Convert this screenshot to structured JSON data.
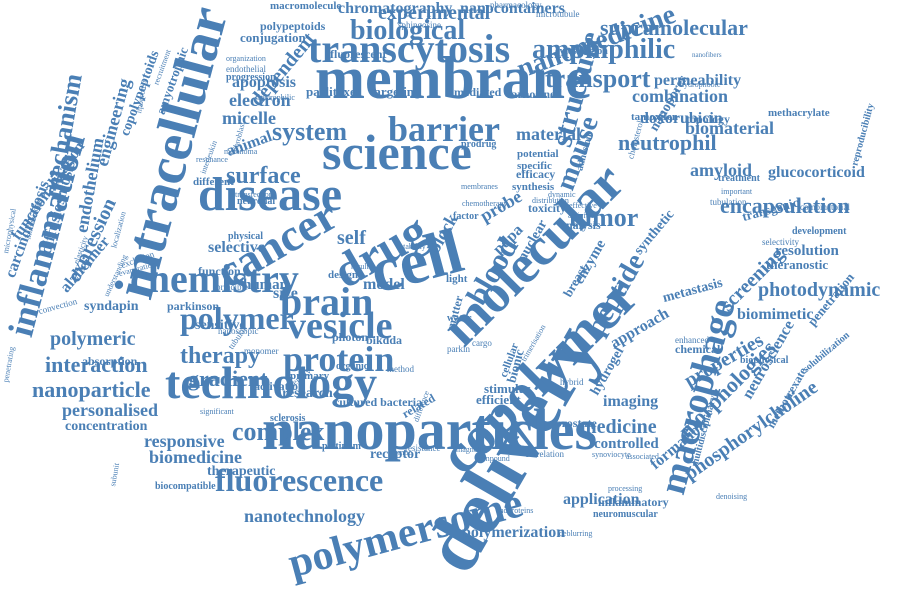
{
  "theme": {
    "word_color": "#4A7FB5",
    "background": "#ffffff"
  },
  "cloud": {
    "words": [
      "delivery",
      "nanoparticles",
      "membrane",
      "copolymer",
      "molecular",
      "science",
      "cell",
      "drug",
      "intracellular",
      "cancer",
      "disease",
      "inflammation",
      "polymersome",
      "macrophage",
      "technology",
      "chemistry",
      "brain",
      "vesicle",
      "transcytosis",
      "barrier",
      "fluorescence",
      "protein",
      "polymer",
      "amphiphilic",
      "nanomedicine",
      "biological",
      "structure",
      "blood",
      "encapsulation",
      "system",
      "surface",
      "peptide",
      "complex",
      "transport",
      "supramolecular",
      "experimental",
      "chromatography",
      "nanocontainers",
      "pharmacology",
      "macromolecule",
      "sphingosine",
      "microtubule",
      "polypeptoids",
      "conjugation",
      "dependent",
      "fluorescent",
      "cytoskeleton",
      "organization",
      "endothelial",
      "progression",
      "hydrophilic",
      "mediated",
      "targeting",
      "paclitaxel",
      "apoptosis",
      "electron",
      "micelle",
      "animal",
      "combination",
      "permeability",
      "tamoxifen",
      "doxorubicin",
      "biomaterial",
      "neutrophil",
      "methacrylate",
      "glucocorticoid",
      "reproducibility",
      "amyloid",
      "topology",
      "nanopores",
      "mouse",
      "material",
      "prodrug",
      "carnosine",
      "potential",
      "specific",
      "efficacy",
      "synthesis",
      "different",
      "neuronal",
      "physical",
      "selective",
      "human",
      "size",
      "model",
      "tumor",
      "probe",
      "self",
      "block",
      "pdpa",
      "breast",
      "nuclear",
      "enzyme",
      "analysis",
      "toxicity",
      "factor",
      "synthetic",
      "transgenic",
      "selectivity",
      "development",
      "combinatorial",
      "resolution",
      "theranostic",
      "screening",
      "metastasis",
      "photodynamic",
      "penetration",
      "biomimetic",
      "mechanism",
      "endothelium",
      "diffusiosmosis",
      "carcinomatosis",
      "functionalization",
      "engineering",
      "copolypeptoids",
      "amyotrophic",
      "expression",
      "alzheimer",
      "exclusion",
      "syndapin",
      "parkinson",
      "sensitive",
      "polymeric",
      "absorption",
      "interaction",
      "therapy",
      "nanoparticle",
      "gradient",
      "personalised",
      "concentration",
      "responsive",
      "biomedicine",
      "therapeutic",
      "nanotechnology",
      "platinum",
      "receptor",
      "medicine",
      "controlled",
      "imaging",
      "prostate",
      "efficient",
      "stimulus",
      "bionic",
      "cellular",
      "approach",
      "morphologies",
      "properties",
      "neuroscience",
      "phosphorylcholine",
      "methotrexate",
      "application",
      "polymerization",
      "inflammatory",
      "neuromuscular",
      "formation",
      "hydrogel",
      "research",
      "photon",
      "bikdda",
      "cultured bacteria",
      "sclerosis",
      "activation",
      "related",
      "matter",
      "hybrid",
      "cargo",
      "parkin",
      "solubilization",
      "chemical",
      "biophysical",
      "enhanced",
      "multidisciplinary",
      "biocompatible",
      "andproteins",
      "deblurring",
      "primary",
      "organic",
      "method",
      "water",
      "light",
      "design",
      "result",
      "monomer",
      "density",
      "tubular",
      "significant",
      "nanoscopic",
      "principle",
      "function",
      "resonance",
      "adhesion",
      "cholesterol",
      "stability",
      "activity",
      "effective",
      "distribution",
      "dynamic",
      "membranes",
      "chemotherapy",
      "treatment",
      "important",
      "tubulation",
      "immunology",
      "microphysical",
      "penetrating",
      "elasticity",
      "localization",
      "evaporation",
      "convection",
      "understanding",
      "subunit",
      "fibroblast",
      "interleukin",
      "melanoma",
      "transfection",
      "difference",
      "magnetic",
      "correlation",
      "synoviocyte",
      "trimerisation",
      "recruitment",
      "lipoprotein",
      "pmpc",
      "resistance",
      "compound",
      "processing",
      "associated",
      "hydrophobic",
      "nanofibers",
      "denoising"
    ]
  }
}
